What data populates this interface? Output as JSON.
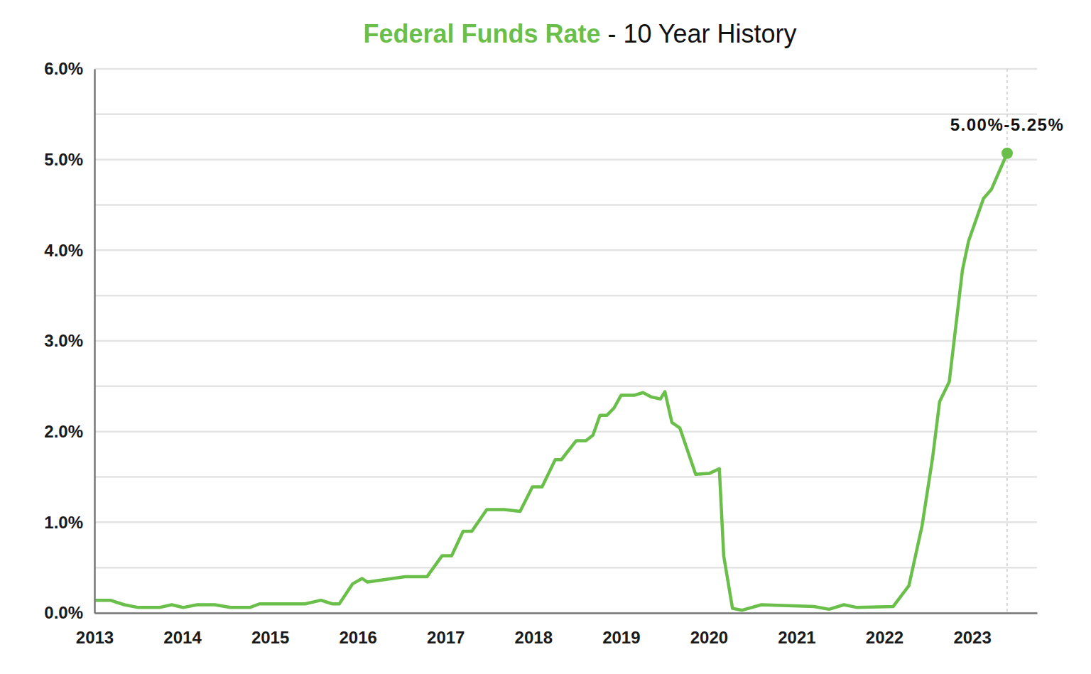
{
  "chart_data": {
    "type": "line",
    "title": "Federal Funds Rate",
    "subtitle": "- 10 Year History",
    "annotation": "5.00%-5.25%",
    "color": "#6abf4b",
    "grid": true,
    "xlim": [
      2013,
      2023.74
    ],
    "xticks": [
      2013,
      2014,
      2015,
      2016,
      2017,
      2018,
      2019,
      2020,
      2021,
      2022,
      2023
    ],
    "ylim": [
      0,
      6
    ],
    "yticks": [
      {
        "value": 0,
        "label": "0.0%"
      },
      {
        "value": 1,
        "label": "1.0%"
      },
      {
        "value": 2,
        "label": "2.0%"
      },
      {
        "value": 3,
        "label": "3.0%"
      },
      {
        "value": 4,
        "label": "4.0%"
      },
      {
        "value": 5,
        "label": "5.0%"
      },
      {
        "value": 6,
        "label": "6.0%"
      }
    ],
    "minor_yticks": [
      0.5,
      1.5,
      2.5,
      3.5,
      4.5,
      5.5
    ],
    "x": [
      2013.0,
      2013.18,
      2013.34,
      2013.5,
      2013.74,
      2013.88,
      2014.01,
      2014.17,
      2014.37,
      2014.55,
      2014.77,
      2014.88,
      2015.4,
      2015.58,
      2015.71,
      2015.79,
      2015.94,
      2016.05,
      2016.11,
      2016.54,
      2016.79,
      2016.96,
      2017.07,
      2017.2,
      2017.3,
      2017.47,
      2017.67,
      2017.85,
      2017.99,
      2018.1,
      2018.25,
      2018.32,
      2018.49,
      2018.6,
      2018.68,
      2018.76,
      2018.84,
      2018.92,
      2019.0,
      2019.15,
      2019.25,
      2019.35,
      2019.45,
      2019.5,
      2019.58,
      2019.67,
      2019.85,
      2020.01,
      2020.12,
      2020.17,
      2020.27,
      2020.38,
      2020.6,
      2021.2,
      2021.37,
      2021.54,
      2021.69,
      2022.1,
      2022.28,
      2022.43,
      2022.55,
      2022.63,
      2022.74,
      2022.89,
      2022.96,
      2023.13,
      2023.22,
      2023.4
    ],
    "values": [
      0.14,
      0.14,
      0.09,
      0.06,
      0.06,
      0.09,
      0.06,
      0.09,
      0.09,
      0.06,
      0.06,
      0.1,
      0.1,
      0.14,
      0.1,
      0.1,
      0.32,
      0.38,
      0.34,
      0.4,
      0.4,
      0.63,
      0.63,
      0.9,
      0.9,
      1.14,
      1.14,
      1.12,
      1.39,
      1.39,
      1.69,
      1.69,
      1.9,
      1.9,
      1.96,
      2.18,
      2.18,
      2.26,
      2.4,
      2.4,
      2.43,
      2.38,
      2.36,
      2.44,
      2.1,
      2.04,
      1.53,
      1.54,
      1.59,
      0.63,
      0.05,
      0.03,
      0.09,
      0.07,
      0.04,
      0.09,
      0.06,
      0.07,
      0.3,
      0.96,
      1.71,
      2.33,
      2.55,
      3.78,
      4.1,
      4.57,
      4.67,
      5.07
    ]
  }
}
